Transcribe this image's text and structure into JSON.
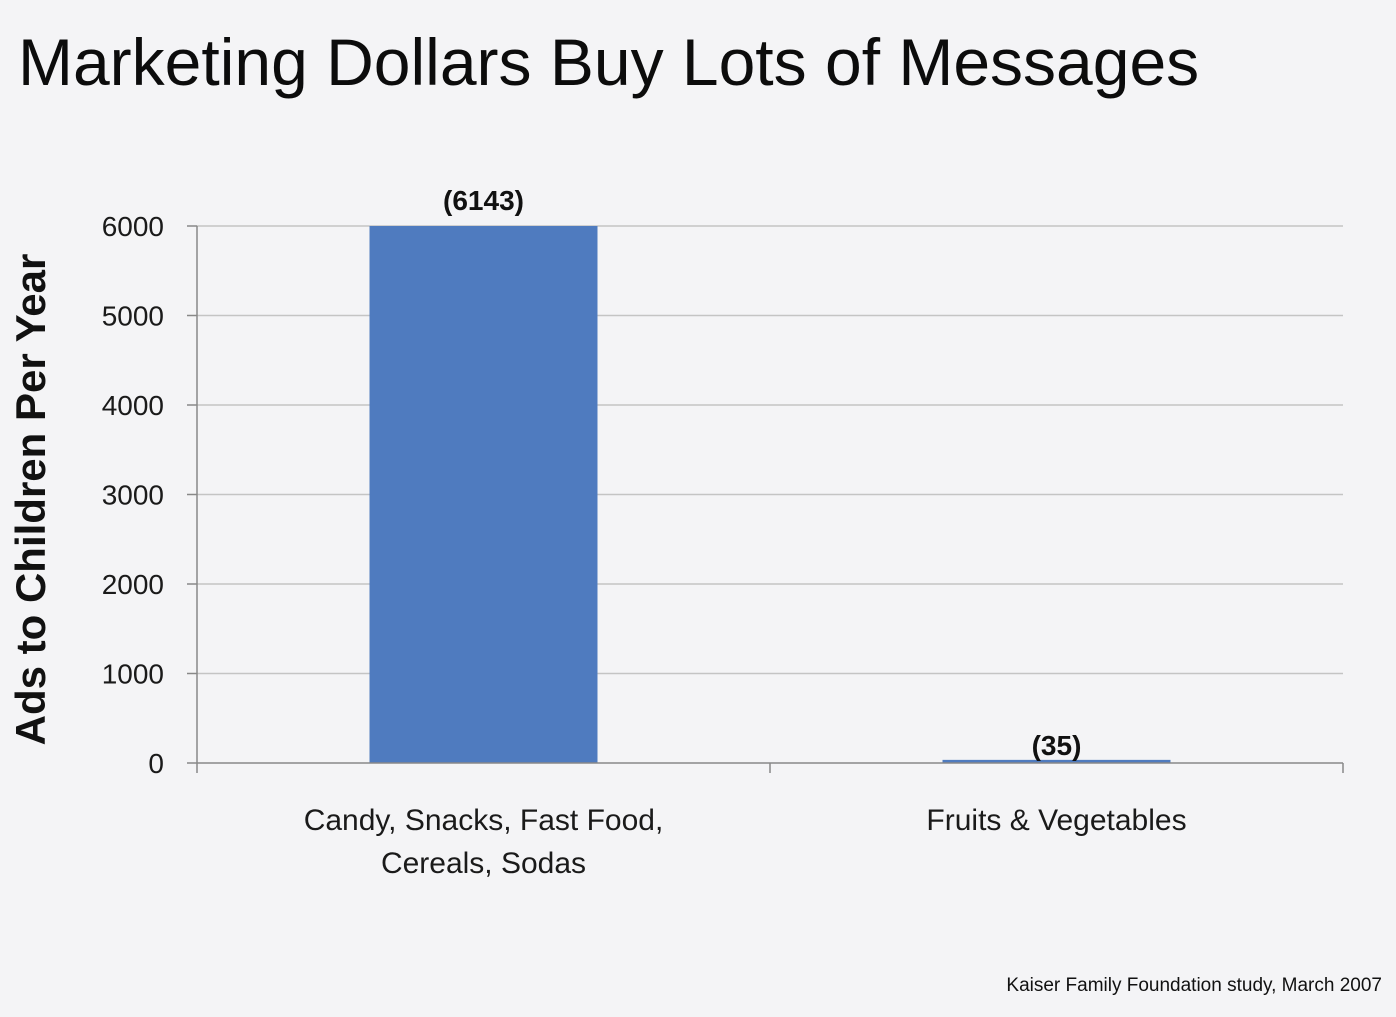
{
  "slide": {
    "title": "Marketing Dollars Buy Lots of Messages",
    "source_note": "Kaiser Family Foundation study, March 2007"
  },
  "colors": {
    "background": "#f4f4f6",
    "bar": "#4f7bbf",
    "gridline": "#c4c4c4",
    "text": "#111111"
  },
  "chart_data": {
    "type": "bar",
    "title": "",
    "xlabel": "",
    "ylabel": "Ads to Children Per Year",
    "categories": [
      [
        "Candy, Snacks, Fast Food,",
        "Cereals, Sodas"
      ],
      [
        "Fruits & Vegetables"
      ]
    ],
    "values": [
      6143,
      35
    ],
    "data_labels": [
      "(6143)",
      "(35)"
    ],
    "ylim": [
      0,
      6000
    ],
    "yticks": [
      0,
      1000,
      2000,
      3000,
      4000,
      5000,
      6000
    ],
    "grid": true,
    "legend": "none"
  }
}
